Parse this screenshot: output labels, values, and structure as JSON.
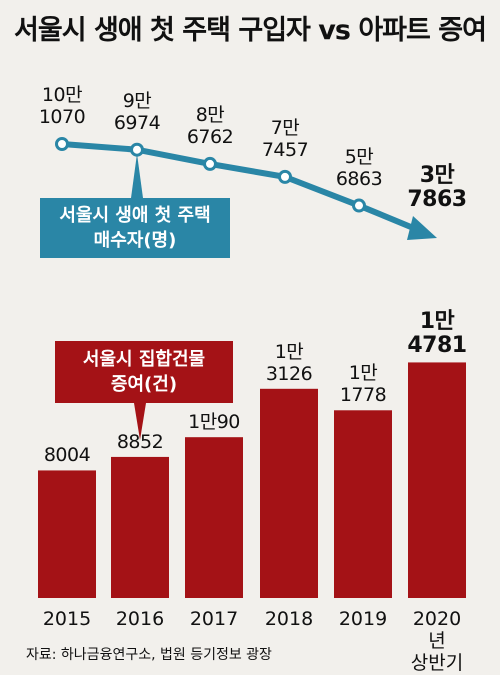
{
  "title": "서울시 생애 첫 주택 구입자 vs 아파트 증여",
  "source": "자료: 하나금융연구소, 법원 등기정보 광장",
  "colors": {
    "line": "#2a86a6",
    "bar": "#a41216",
    "background": "#f2f0ec"
  },
  "chart_data": [
    {
      "type": "line",
      "title": "서울시 생애 첫 주택 매수자(명)",
      "title_lines": [
        "서울시 생애 첫 주택",
        "매수자(명)"
      ],
      "x": [
        "2015",
        "2016",
        "2017",
        "2018",
        "2019",
        "2020년 상반기"
      ],
      "values": [
        101070,
        96974,
        86762,
        77457,
        56863,
        37863
      ],
      "labels": [
        [
          "10만",
          "1070"
        ],
        [
          "9만",
          "6974"
        ],
        [
          "8만",
          "6762"
        ],
        [
          "7만",
          "7457"
        ],
        [
          "5만",
          "6863"
        ],
        [
          "3만",
          "7863"
        ]
      ]
    },
    {
      "type": "bar",
      "title": "서울시 집합건물 증여(건)",
      "title_lines": [
        "서울시 집합건물",
        "증여(건)"
      ],
      "categories": [
        "2015",
        "2016",
        "2017",
        "2018",
        "2019",
        "2020년"
      ],
      "category_sublabels": [
        "",
        "",
        "",
        "",
        "",
        "상반기"
      ],
      "values": [
        8004,
        8852,
        10090,
        13126,
        11778,
        14781
      ],
      "labels": [
        [
          "8004"
        ],
        [
          "8852"
        ],
        [
          "1만90"
        ],
        [
          "1만",
          "3126"
        ],
        [
          "1만",
          "1778"
        ],
        [
          "1만",
          "4781"
        ]
      ]
    }
  ]
}
